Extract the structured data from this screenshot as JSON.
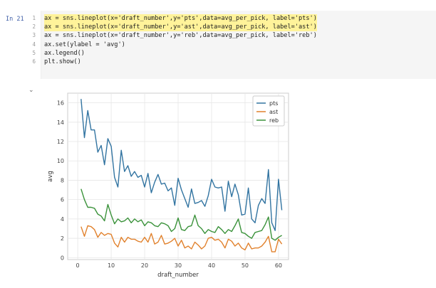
{
  "cell": {
    "prompt": "In 21",
    "line_numbers": [
      "1",
      "2",
      "3",
      "4",
      "5",
      "6"
    ],
    "lines": [
      "ax = sns.lineplot(x='draft_number',y='pts',data=avg_per_pick, label='pts')",
      "ax = sns.lineplot(x='draft_number',y='ast',data=avg_per_pick, label='ast')",
      "ax = sns.lineplot(x='draft_number',y='reb',data=avg_per_pick, label='reb')",
      "ax.set(ylabel = 'avg')",
      "ax.legend()",
      "plt.show()"
    ],
    "collapse_icon": "chevron-down-icon"
  },
  "chart_data": {
    "type": "line",
    "xlabel": "draft_number",
    "ylabel": "avg",
    "xlim": [
      -3,
      63
    ],
    "ylim": [
      -0.2,
      17
    ],
    "xticks": [
      0,
      10,
      20,
      30,
      40,
      50,
      60
    ],
    "yticks": [
      0,
      2,
      4,
      6,
      8,
      10,
      12,
      14,
      16
    ],
    "grid": true,
    "legend_position": "top-right",
    "series": [
      {
        "name": "pts",
        "color": "#3274a1",
        "x": [
          1,
          2,
          3,
          4,
          5,
          6,
          7,
          8,
          9,
          10,
          11,
          12,
          13,
          14,
          15,
          16,
          17,
          18,
          19,
          20,
          21,
          22,
          23,
          24,
          25,
          26,
          27,
          28,
          29,
          30,
          31,
          32,
          33,
          34,
          35,
          36,
          37,
          38,
          39,
          40,
          41,
          42,
          43,
          44,
          45,
          46,
          47,
          48,
          49,
          50,
          51,
          52,
          53,
          54,
          55,
          56,
          57,
          58,
          59,
          60,
          61
        ],
        "values": [
          16.4,
          12.4,
          15.2,
          13.2,
          13.2,
          10.9,
          11.6,
          9.6,
          12.3,
          11.5,
          8.3,
          7.3,
          11.1,
          8.9,
          9.5,
          8.4,
          8.9,
          8.3,
          8.5,
          7.3,
          8.7,
          6.7,
          7.8,
          8.6,
          7.6,
          7.7,
          6.9,
          7.2,
          5.4,
          8.2,
          7.0,
          6.1,
          5.2,
          7.1,
          5.6,
          5.7,
          5.9,
          5.3,
          6.4,
          8.1,
          7.3,
          7.2,
          7.3,
          4.8,
          7.9,
          6.3,
          7.6,
          6.5,
          4.4,
          4.5,
          7.2,
          4.0,
          3.6,
          5.4,
          6.1,
          5.6,
          9.1,
          3.6,
          2.8,
          8.1,
          4.9
        ]
      },
      {
        "name": "ast",
        "color": "#e1812c",
        "x": [
          1,
          2,
          3,
          4,
          5,
          6,
          7,
          8,
          9,
          10,
          11,
          12,
          13,
          14,
          15,
          16,
          17,
          18,
          19,
          20,
          21,
          22,
          23,
          24,
          25,
          26,
          27,
          28,
          29,
          30,
          31,
          32,
          33,
          34,
          35,
          36,
          37,
          38,
          39,
          40,
          41,
          42,
          43,
          44,
          45,
          46,
          47,
          48,
          49,
          50,
          51,
          52,
          53,
          54,
          55,
          56,
          57,
          58,
          59,
          60,
          61
        ],
        "values": [
          3.2,
          2.2,
          3.3,
          3.2,
          2.9,
          2.1,
          2.6,
          2.3,
          2.5,
          2.4,
          1.5,
          1.1,
          2.1,
          1.6,
          2.1,
          1.9,
          1.9,
          1.7,
          1.6,
          2.1,
          1.6,
          2.5,
          1.4,
          1.6,
          2.3,
          1.4,
          1.5,
          1.7,
          2.0,
          1.2,
          1.8,
          1.0,
          1.2,
          0.9,
          1.6,
          1.3,
          0.9,
          1.2,
          2.0,
          2.1,
          1.8,
          1.9,
          1.6,
          1.0,
          1.9,
          1.7,
          1.2,
          1.5,
          1.0,
          0.8,
          1.5,
          0.9,
          1.0,
          1.0,
          1.2,
          1.6,
          2.2,
          0.6,
          0.6,
          1.9,
          1.4
        ]
      },
      {
        "name": "reb",
        "color": "#3a923a",
        "x": [
          1,
          2,
          3,
          4,
          5,
          6,
          7,
          8,
          9,
          10,
          11,
          12,
          13,
          14,
          15,
          16,
          17,
          18,
          19,
          20,
          21,
          22,
          23,
          24,
          25,
          26,
          27,
          28,
          29,
          30,
          31,
          32,
          33,
          34,
          35,
          36,
          37,
          38,
          39,
          40,
          41,
          42,
          43,
          44,
          45,
          46,
          47,
          48,
          49,
          50,
          51,
          52,
          53,
          54,
          55,
          56,
          57,
          58,
          59,
          60,
          61
        ],
        "values": [
          7.1,
          6.0,
          5.2,
          5.2,
          5.1,
          4.5,
          4.3,
          3.8,
          5.5,
          4.4,
          3.5,
          4.0,
          3.7,
          3.8,
          4.1,
          3.6,
          4.0,
          3.7,
          3.9,
          3.3,
          3.7,
          3.6,
          3.3,
          3.2,
          3.6,
          3.5,
          3.3,
          2.7,
          3.0,
          4.1,
          2.9,
          2.8,
          3.2,
          3.3,
          4.4,
          3.3,
          3.0,
          2.5,
          2.9,
          2.7,
          2.6,
          3.2,
          2.9,
          2.5,
          2.9,
          2.7,
          3.3,
          4.0,
          2.6,
          2.5,
          2.2,
          2.0,
          2.6,
          2.7,
          2.8,
          3.4,
          4.2,
          2.0,
          1.8,
          2.1,
          2.3
        ]
      }
    ]
  }
}
